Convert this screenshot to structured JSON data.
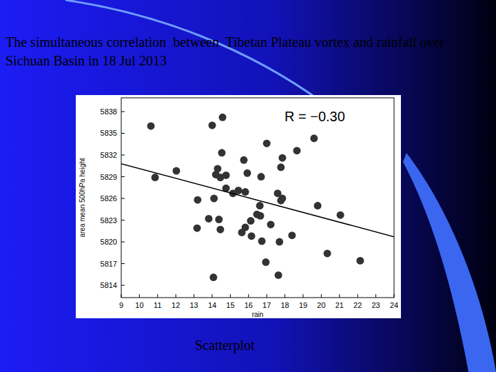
{
  "slide": {
    "title": "The simultaneous correlation  between  Tibetan Plateau vortex and rainfall over Sichuan Basin in 18 Jul 2013",
    "caption": "Scatterplot"
  },
  "chart_data": {
    "type": "scatter",
    "x_label": "rain",
    "y_label": "area mean 500hPa height",
    "annotations": [
      "R = −0.30"
    ],
    "series": [
      {
        "type": "scatter",
        "color": "#333333",
        "marker": "circle",
        "x": [
          10.63,
          10.86,
          12.03,
          13.2,
          13.17,
          13.81,
          14.0,
          14.57,
          14.53,
          14.3,
          14.2,
          14.1,
          14.37,
          14.45,
          14.07,
          14.45,
          14.76,
          14.76,
          15.14,
          15.44,
          15.74,
          15.93,
          15.82,
          15.82,
          15.63,
          16.12,
          16.16,
          16.46,
          16.65,
          16.62,
          16.69,
          16.73,
          17.0,
          17.22,
          16.95,
          17.6,
          17.86,
          17.78,
          17.78,
          17.86,
          17.7,
          17.64,
          18.39,
          18.66,
          19.6,
          19.8,
          20.33,
          21.05,
          22.14
        ],
        "values": [
          5836.0,
          5828.9,
          5829.8,
          5825.8,
          5821.9,
          5823.2,
          5836.1,
          5837.2,
          5832.3,
          5830.1,
          5829.3,
          5826.0,
          5823.1,
          5821.7,
          5815.1,
          5828.9,
          5829.2,
          5827.4,
          5826.7,
          5827.1,
          5831.3,
          5829.5,
          5826.9,
          5822.0,
          5821.3,
          5822.9,
          5820.8,
          5823.8,
          5823.6,
          5825.0,
          5829.0,
          5820.1,
          5833.6,
          5822.4,
          5817.2,
          5826.7,
          5826.0,
          5825.7,
          5830.3,
          5831.6,
          5820.0,
          5815.4,
          5820.9,
          5832.6,
          5834.3,
          5825.0,
          5818.4,
          5823.7,
          5817.4
        ]
      },
      {
        "type": "line",
        "color": "#000000",
        "line_style": "solid",
        "x": [
          9,
          24
        ],
        "values": [
          5830.8,
          5820.7
        ]
      }
    ],
    "xlim": [
      9,
      24
    ],
    "xticks": [
      9,
      10,
      11,
      12,
      13,
      14,
      15,
      16,
      17,
      18,
      19,
      20,
      21,
      22,
      23,
      24
    ],
    "ylim": [
      5812.3,
      5839.9
    ],
    "yticks": [
      5814,
      5817,
      5820,
      5823,
      5826,
      5829,
      5832,
      5835,
      5838
    ],
    "grid": false
  }
}
